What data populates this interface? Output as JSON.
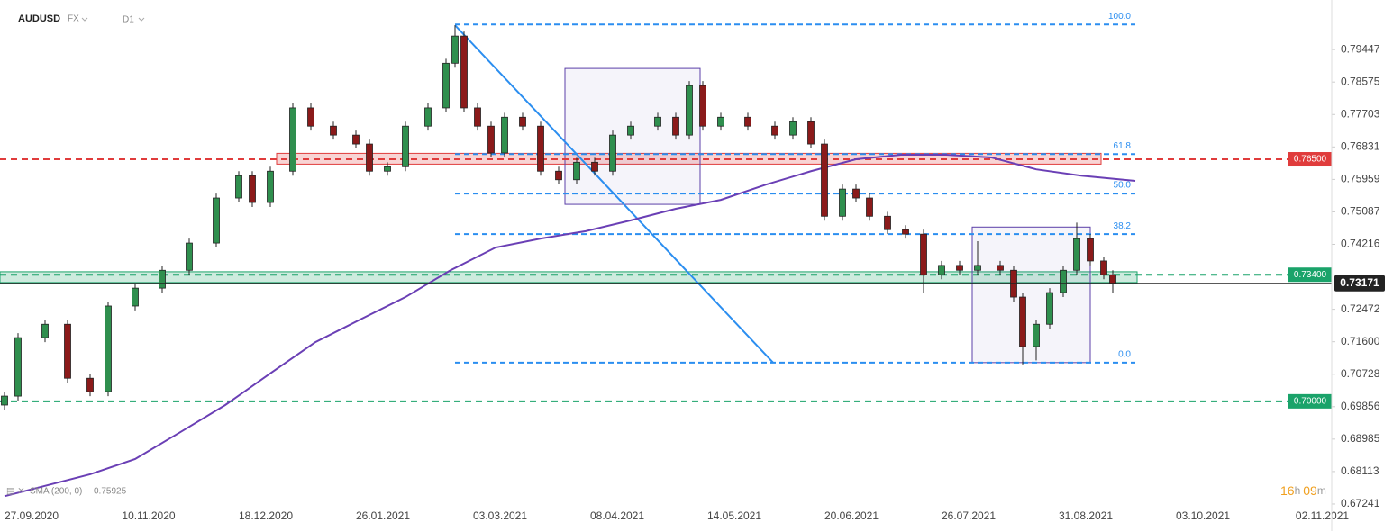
{
  "chart_data": {
    "type": "candlestick",
    "symbol": "AUDUSD",
    "market": "FX",
    "timeframe": "D1",
    "x": [
      -6,
      -3,
      3,
      8,
      13,
      17,
      23,
      29,
      35,
      41,
      46,
      49,
      53,
      58,
      62,
      67,
      72,
      75,
      79,
      83,
      88,
      92,
      94,
      96,
      99,
      102,
      105,
      109,
      113,
      117,
      121,
      125,
      129,
      133,
      139,
      143,
      146,
      149,
      153,
      159,
      165,
      169,
      173,
      176,
      180,
      183,
      186,
      190,
      194,
      198,
      202,
      206,
      210,
      215,
      218,
      220,
      223,
      226,
      229,
      232,
      235,
      238,
      240
    ],
    "open": [
      0.699,
      0.7014,
      0.7171,
      0.7207,
      0.7062,
      0.7026,
      0.7256,
      0.7304,
      0.7352,
      0.7425,
      0.7546,
      0.7606,
      0.7534,
      0.7618,
      0.7788,
      0.7739,
      0.7715,
      0.7691,
      0.7618,
      0.763,
      0.7739,
      0.7788,
      0.7908,
      0.7981,
      0.7788,
      0.7739,
      0.7667,
      0.7763,
      0.7739,
      0.7618,
      0.7595,
      0.7642,
      0.7618,
      0.7715,
      0.7739,
      0.7763,
      0.7715,
      0.7848,
      0.7739,
      0.7763,
      0.7739,
      0.7715,
      0.7751,
      0.7691,
      0.7497,
      0.757,
      0.7546,
      0.7497,
      0.7461,
      0.7449,
      0.734,
      0.7365,
      0.7352,
      0.7365,
      0.7352,
      0.728,
      0.7147,
      0.7207,
      0.7292,
      0.7352,
      0.7437,
      0.7377,
      0.734
    ],
    "high": [
      0.7026,
      0.7183,
      0.7219,
      0.7219,
      0.7074,
      0.7268,
      0.7316,
      0.7364,
      0.7437,
      0.7558,
      0.7618,
      0.7618,
      0.763,
      0.78,
      0.78,
      0.7751,
      0.7727,
      0.7703,
      0.7642,
      0.7751,
      0.78,
      0.792,
      0.801,
      0.7993,
      0.78,
      0.7751,
      0.7775,
      0.7775,
      0.7751,
      0.763,
      0.7654,
      0.7654,
      0.7727,
      0.7751,
      0.7775,
      0.7775,
      0.786,
      0.786,
      0.7775,
      0.7775,
      0.7751,
      0.7763,
      0.7763,
      0.7703,
      0.7582,
      0.7582,
      0.7558,
      0.7509,
      0.7473,
      0.7461,
      0.7377,
      0.7377,
      0.743,
      0.7377,
      0.7364,
      0.7292,
      0.7219,
      0.7304,
      0.7364,
      0.748,
      0.7449,
      0.7389,
      0.7352
    ],
    "low": [
      0.6978,
      0.7002,
      0.7159,
      0.705,
      0.7014,
      0.7014,
      0.7244,
      0.7292,
      0.734,
      0.7413,
      0.7534,
      0.7522,
      0.7522,
      0.7606,
      0.7727,
      0.7703,
      0.7679,
      0.7606,
      0.7606,
      0.7618,
      0.7727,
      0.7776,
      0.7896,
      0.7776,
      0.7727,
      0.7655,
      0.7655,
      0.7727,
      0.7606,
      0.7583,
      0.7583,
      0.7606,
      0.7606,
      0.7703,
      0.7727,
      0.7703,
      0.7703,
      0.7727,
      0.7727,
      0.7727,
      0.7703,
      0.7703,
      0.7679,
      0.7485,
      0.7485,
      0.7534,
      0.7485,
      0.7449,
      0.7437,
      0.729,
      0.7328,
      0.734,
      0.734,
      0.734,
      0.7268,
      0.7099,
      0.711,
      0.7195,
      0.728,
      0.734,
      0.7365,
      0.7328,
      0.729
    ],
    "close": [
      0.7014,
      0.7171,
      0.7207,
      0.7062,
      0.7026,
      0.7256,
      0.7304,
      0.7352,
      0.7425,
      0.7546,
      0.7606,
      0.7534,
      0.7618,
      0.7788,
      0.7739,
      0.7715,
      0.7691,
      0.7618,
      0.763,
      0.7739,
      0.7788,
      0.7908,
      0.7981,
      0.7788,
      0.7739,
      0.7667,
      0.7763,
      0.7739,
      0.7618,
      0.7595,
      0.7642,
      0.7618,
      0.7715,
      0.7739,
      0.7763,
      0.7715,
      0.7848,
      0.7739,
      0.7763,
      0.7739,
      0.7715,
      0.7751,
      0.7691,
      0.7497,
      0.757,
      0.7546,
      0.7497,
      0.7461,
      0.7449,
      0.734,
      0.7365,
      0.7352,
      0.7365,
      0.7352,
      0.728,
      0.7147,
      0.7207,
      0.7292,
      0.7352,
      0.7437,
      0.7377,
      0.734,
      0.7317
    ],
    "up_color": "#2f8f4e",
    "down_color": "#8b1a1a",
    "xlim": [
      -7,
      288.6
    ],
    "xticks": [
      {
        "value": 0,
        "label": "27.09.2020"
      },
      {
        "value": 26,
        "label": "10.11.2020"
      },
      {
        "value": 52,
        "label": "18.12.2020"
      },
      {
        "value": 78,
        "label": "26.01.2021"
      },
      {
        "value": 104,
        "label": "03.03.2021"
      },
      {
        "value": 130,
        "label": "08.04.2021"
      },
      {
        "value": 156,
        "label": "14.05.2021"
      },
      {
        "value": 182,
        "label": "20.06.2021"
      },
      {
        "value": 208,
        "label": "26.07.2021"
      },
      {
        "value": 234,
        "label": "31.08.2021"
      },
      {
        "value": 260,
        "label": "03.10.2021"
      },
      {
        "value": 286.5,
        "label": "02.11.2021"
      }
    ],
    "ylim": [
      0.6695,
      0.8078
    ],
    "yticks": [
      0.79447,
      0.78575,
      0.77703,
      0.76831,
      0.75959,
      0.75087,
      0.74216,
      0.72472,
      {
        "value": 0.716,
        "label": "0.71600"
      },
      0.70728,
      0.69856,
      0.68985,
      0.68113,
      0.67241
    ],
    "sma": {
      "name": "SMA (200, 0)",
      "last": 0.75925,
      "color": "#6a3fb5",
      "x": [
        -6,
        13,
        23,
        33,
        43,
        53,
        63,
        73,
        83,
        93,
        103,
        113,
        123,
        133,
        143,
        153,
        163,
        173,
        183,
        193,
        203,
        213,
        223,
        233,
        245
      ],
      "values": [
        0.6745,
        0.6804,
        0.6845,
        0.6917,
        0.699,
        0.7075,
        0.7159,
        0.722,
        0.728,
        0.7352,
        0.7413,
        0.7437,
        0.7457,
        0.7486,
        0.7517,
        0.7541,
        0.7582,
        0.7618,
        0.765,
        0.7662,
        0.7662,
        0.7655,
        0.7623,
        0.7606,
        0.7592
      ]
    },
    "levels": [
      {
        "value": 0.765,
        "label": "0.76500",
        "color": "#e03c3c"
      },
      {
        "value": 0.734,
        "label": "0.73400",
        "color": "#1aa36a"
      },
      {
        "value": 0.7,
        "label": "0.70000",
        "color": "#1aa36a"
      }
    ],
    "current": {
      "value": 0.73171,
      "color": "#222"
    },
    "fib": {
      "x": [
        94,
        245
      ],
      "color": "#2b8ef0",
      "levels": [
        {
          "value": 0.8012,
          "label": "100.0"
        },
        {
          "value": 0.7664,
          "label": "61.8"
        },
        {
          "value": 0.7558,
          "label": "50.0"
        },
        {
          "value": 0.7449,
          "label": "38.2"
        },
        {
          "value": 0.7104,
          "label": "0.0"
        }
      ]
    },
    "trendline": {
      "x": [
        94,
        164.6
      ],
      "values": [
        0.801,
        0.7104
      ],
      "color": "#2b8ef0"
    },
    "zones": [
      {
        "x": [
          54.4,
          237.4
        ],
        "y": [
          0.7637,
          0.7666
        ],
        "color": "#e03c3c"
      },
      {
        "x": [
          -7,
          245.4
        ],
        "y": [
          0.7319,
          0.7348
        ],
        "color": "#1aa36a"
      },
      {
        "x": [
          118.4,
          148.4
        ],
        "y": [
          0.7529,
          0.7894
        ],
        "color": "#5b3fa8"
      },
      {
        "x": [
          208.8,
          235
        ],
        "y": [
          0.7104,
          0.7468
        ],
        "color": "#5b3fa8"
      }
    ],
    "timer": [
      "16",
      "h",
      "09",
      "m"
    ]
  }
}
